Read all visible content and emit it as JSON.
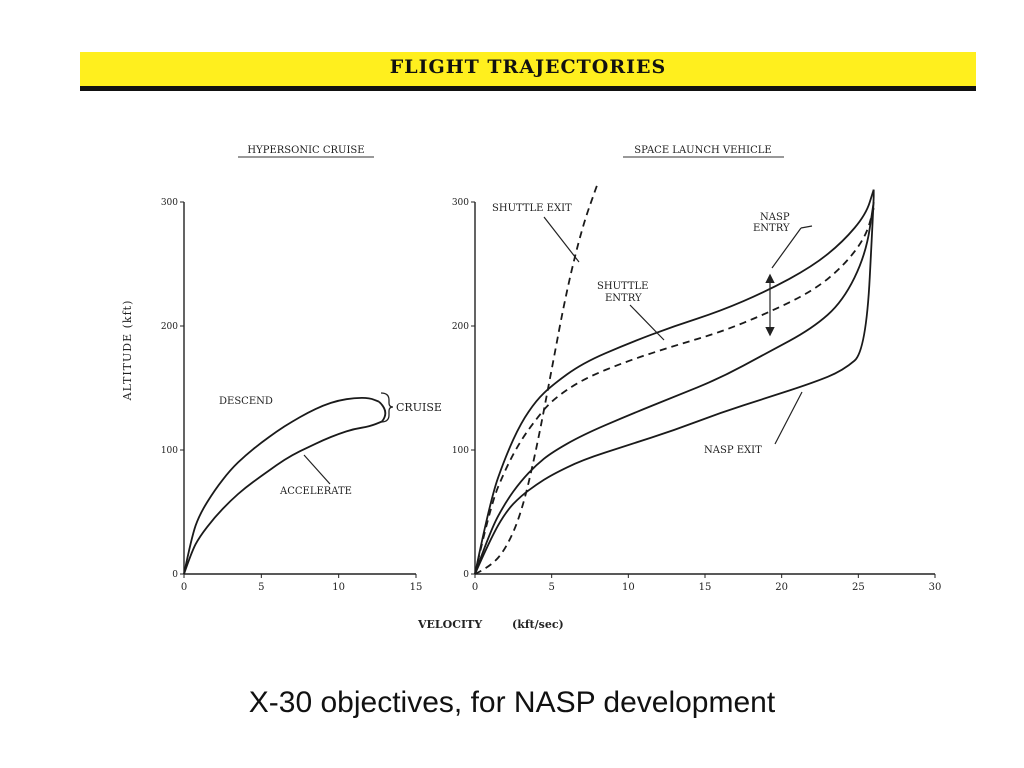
{
  "banner": {
    "title": "FLIGHT  TRAJECTORIES"
  },
  "caption": "X-30 objectives, for NASP development",
  "shared_axes": {
    "y_label": "ALTITUDE   (kft)",
    "x_label": "VELOCITY",
    "x_units": "(kft/sec)"
  },
  "chart_data": [
    {
      "type": "line",
      "title": "HYPERSONIC CRUISE",
      "xlabel": "VELOCITY (kft/sec)",
      "ylabel": "ALTITUDE (kft)",
      "xlim": [
        0,
        15
      ],
      "ylim": [
        0,
        300
      ],
      "x_ticks": [
        "0",
        "5",
        "10",
        "15"
      ],
      "y_ticks": [
        "0",
        "100",
        "200",
        "300"
      ],
      "series": [
        {
          "name": "DESCEND",
          "style": "solid",
          "points": [
            [
              0,
              0
            ],
            [
              0.5,
              30
            ],
            [
              1,
              48
            ],
            [
              2,
              68
            ],
            [
              3,
              84
            ],
            [
              4,
              96
            ],
            [
              5,
              106
            ],
            [
              6,
              115
            ],
            [
              7,
              123
            ],
            [
              8,
              130
            ],
            [
              9,
              136
            ],
            [
              10,
              140
            ],
            [
              11,
              142
            ],
            [
              12,
              142
            ],
            [
              12.6,
              139
            ]
          ]
        },
        {
          "name": "ACCELERATE",
          "style": "solid",
          "points": [
            [
              0,
              0
            ],
            [
              0.5,
              18
            ],
            [
              1,
              30
            ],
            [
              2,
              46
            ],
            [
              3,
              59
            ],
            [
              4,
              70
            ],
            [
              5,
              79
            ],
            [
              6,
              88
            ],
            [
              7,
              96
            ],
            [
              8,
              102
            ],
            [
              9,
              108
            ],
            [
              10,
              113
            ],
            [
              11,
              117
            ],
            [
              12,
              119
            ],
            [
              12.8,
              123
            ]
          ]
        }
      ],
      "annotations": [
        {
          "text": "CRUISE",
          "x_range": [
            12.6,
            12.8
          ],
          "y_range": [
            120,
            140
          ]
        }
      ]
    },
    {
      "type": "line",
      "title": "SPACE LAUNCH VEHICLE",
      "xlabel": "VELOCITY (kft/sec)",
      "ylabel": "ALTITUDE (kft)",
      "xlim": [
        0,
        30
      ],
      "ylim": [
        0,
        300
      ],
      "x_ticks": [
        "0",
        "5",
        "10",
        "15",
        "20",
        "25",
        "30"
      ],
      "y_ticks": [
        "0",
        "100",
        "200",
        "300"
      ],
      "series": [
        {
          "name": "SHUTTLE EXIT",
          "style": "dashed",
          "points": [
            [
              0,
              0
            ],
            [
              1,
              6
            ],
            [
              2,
              20
            ],
            [
              3,
              48
            ],
            [
              4,
              100
            ],
            [
              5,
              165
            ],
            [
              6,
              230
            ],
            [
              7,
              280
            ],
            [
              8,
              315
            ]
          ]
        },
        {
          "name": "SHUTTLE ENTRY",
          "style": "dashed",
          "points": [
            [
              0,
              0
            ],
            [
              1,
              55
            ],
            [
              2,
              85
            ],
            [
              3,
              108
            ],
            [
              4,
              125
            ],
            [
              5,
              140
            ],
            [
              7,
              157
            ],
            [
              10,
              172
            ],
            [
              13,
              184
            ],
            [
              16,
              195
            ],
            [
              19,
              210
            ],
            [
              22,
              228
            ],
            [
              24,
              248
            ],
            [
              25.5,
              272
            ],
            [
              26,
              295
            ]
          ]
        },
        {
          "name": "NASP ENTRY upper bound",
          "style": "solid",
          "points": [
            [
              0,
              0
            ],
            [
              1,
              60
            ],
            [
              2,
              95
            ],
            [
              3,
              122
            ],
            [
              4,
              140
            ],
            [
              5,
              152
            ],
            [
              7,
              170
            ],
            [
              10,
              186
            ],
            [
              13,
              200
            ],
            [
              16,
              212
            ],
            [
              19,
              228
            ],
            [
              22,
              248
            ],
            [
              24,
              268
            ],
            [
              25.5,
              290
            ],
            [
              26,
              310
            ]
          ]
        },
        {
          "name": "NASP ENTRY lower bound",
          "style": "solid",
          "points": [
            [
              0,
              0
            ],
            [
              1,
              35
            ],
            [
              2,
              58
            ],
            [
              3,
              75
            ],
            [
              4,
              88
            ],
            [
              5,
              98
            ],
            [
              7,
              112
            ],
            [
              10,
              128
            ],
            [
              13,
              143
            ],
            [
              16,
              158
            ],
            [
              19,
              178
            ],
            [
              22,
              198
            ],
            [
              24,
              220
            ],
            [
              25.5,
              258
            ],
            [
              26,
              300
            ]
          ]
        },
        {
          "name": "NASP EXIT",
          "style": "solid",
          "points": [
            [
              0,
              0
            ],
            [
              1,
              28
            ],
            [
              2,
              50
            ],
            [
              3,
              63
            ],
            [
              4,
              72
            ],
            [
              5,
              80
            ],
            [
              7,
              92
            ],
            [
              10,
              104
            ],
            [
              13,
              116
            ],
            [
              16,
              130
            ],
            [
              19,
              142
            ],
            [
              22,
              154
            ],
            [
              24,
              164
            ],
            [
              25.5,
              180
            ],
            [
              26,
              300
            ],
            [
              26,
              310
            ]
          ]
        }
      ],
      "annotations": [
        {
          "text": "SHUTTLE EXIT"
        },
        {
          "text": "NASP ENTRY"
        },
        {
          "text": "SHUTTLE ENTRY"
        },
        {
          "text": "NASP EXIT"
        }
      ]
    }
  ]
}
